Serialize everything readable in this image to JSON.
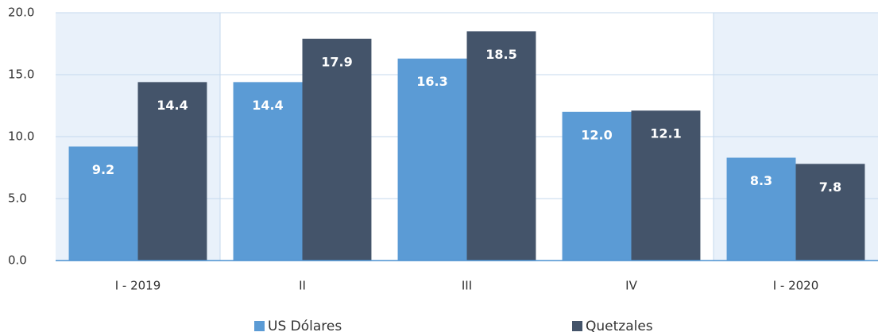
{
  "chart_data": {
    "type": "bar",
    "categories": [
      "I - 2019",
      "II",
      "III",
      "IV",
      "I - 2020"
    ],
    "series": [
      {
        "name": "US Dólares",
        "color": "#5b9bd5",
        "values": [
          9.2,
          14.4,
          16.3,
          12.0,
          8.3
        ],
        "value_labels": [
          "9.2",
          "14.4",
          "16.3",
          "12.0",
          "8.3"
        ]
      },
      {
        "name": "Quetzales",
        "color": "#44546a",
        "values": [
          14.4,
          17.9,
          18.5,
          12.1,
          7.8
        ],
        "value_labels": [
          "14.4",
          "17.9",
          "18.5",
          "12.1",
          "7.8"
        ]
      }
    ],
    "ylim": [
      0,
      20
    ],
    "yticks": [
      {
        "value": 0,
        "label": "0.0"
      },
      {
        "value": 5,
        "label": "5.0"
      },
      {
        "value": 10,
        "label": "10.0"
      },
      {
        "value": 15,
        "label": "15.0"
      },
      {
        "value": 20,
        "label": "20.0"
      }
    ],
    "grid": true,
    "shaded_categories": [
      0,
      4
    ],
    "legend": "bottom"
  }
}
